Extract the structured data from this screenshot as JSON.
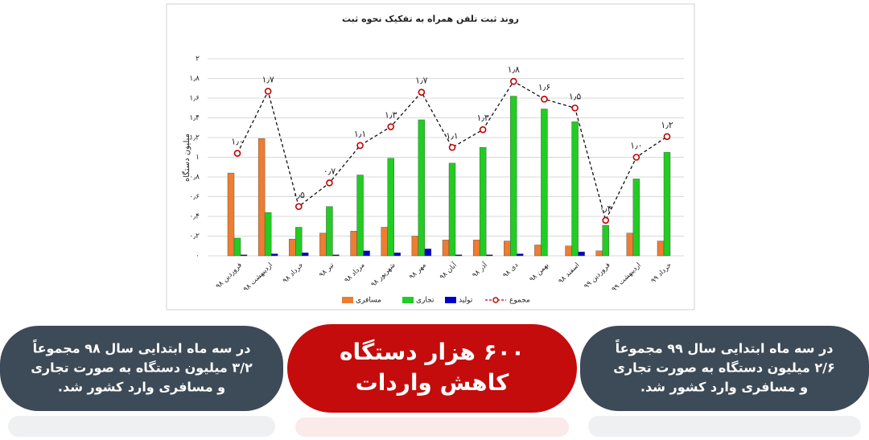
{
  "chart_data": {
    "type": "bar",
    "title": "روند ثبت تلفن همراه به تفکیک نحوه ثبت",
    "y_label": "میلیون دستگاه",
    "categories": [
      "فروردین ۹۸",
      "اردیبهشت ۹۸",
      "خرداد ۹۸",
      "تیر ۹۸",
      "مرداد ۹۸",
      "شهریور ۹۸",
      "مهر ۹۸",
      "آبان ۹۸",
      "آذر ۹۸",
      "دی ۹۸",
      "بهمن ۹۸",
      "اسفند ۹۸",
      "فروردین ۹۹",
      "اردیبهشت ۹۹",
      "خرداد ۹۹"
    ],
    "series": [
      {
        "name": "مسافری",
        "color": "#ed7d31",
        "values": [
          0.84,
          1.19,
          0.17,
          0.23,
          0.25,
          0.29,
          0.2,
          0.16,
          0.16,
          0.15,
          0.11,
          0.1,
          0.05,
          0.23,
          0.15
        ]
      },
      {
        "name": "تجاری",
        "color": "#22cc22",
        "values": [
          0.18,
          0.44,
          0.29,
          0.5,
          0.82,
          0.99,
          1.38,
          0.94,
          1.1,
          1.62,
          1.49,
          1.36,
          0.31,
          0.78,
          1.05
        ]
      },
      {
        "name": "تولید",
        "color": "#0000cc",
        "values": [
          0.01,
          0.02,
          0.03,
          0.01,
          0.05,
          0.03,
          0.07,
          0.01,
          0.01,
          0.02,
          0,
          0.04,
          0,
          0,
          0
        ]
      },
      {
        "name": "مجموع",
        "type": "line",
        "color": "#c00000",
        "values": [
          1.04,
          1.67,
          0.5,
          0.74,
          1.12,
          1.31,
          1.66,
          1.1,
          1.28,
          1.77,
          1.59,
          1.5,
          0.36,
          1.0,
          1.21
        ],
        "value_labels": [
          "۱٫۰",
          "۱٫۷",
          "۰٫۵",
          "۰٫۷",
          "۱٫۱",
          "۱٫۳",
          "۱٫۷",
          "۱٫۱",
          "۱٫۳",
          "۱٫۸",
          "۱٫۶",
          "۱٫۵",
          "۰٫۴",
          "۱٫۰",
          "۱٫۲"
        ]
      }
    ],
    "ylim": [
      0,
      2
    ],
    "yticks": [
      {
        "value": 0,
        "label": "۰"
      },
      {
        "value": 0.2,
        "label": "۰٫۲"
      },
      {
        "value": 0.4,
        "label": "۰٫۴"
      },
      {
        "value": 0.6,
        "label": "۰٫۶"
      },
      {
        "value": 0.8,
        "label": "۰٫۸"
      },
      {
        "value": 1,
        "label": "۱"
      },
      {
        "value": 1.2,
        "label": "۱٫۲"
      },
      {
        "value": 1.4,
        "label": "۱٫۴"
      },
      {
        "value": 1.6,
        "label": "۱٫۶"
      },
      {
        "value": 1.8,
        "label": "۱٫۸"
      },
      {
        "value": 2,
        "label": "۲"
      }
    ],
    "grid": true
  },
  "panels": [
    {
      "lines": [
        "در سه ماه ابتدایی سال ۹۸ مجموعاً",
        "۳/۲ میلیون دستگاه به صورت تجاری",
        "و مسافری وارد کشور شد."
      ]
    },
    {
      "lines": [
        "۶۰۰ هزار دستگاه",
        "کاهش واردات"
      ]
    },
    {
      "lines": [
        "در سه ماه ابتدایی سال ۹۹ مجموعاً",
        "۲/۶ میلیون دستگاه به صورت تجاری",
        "و مسافری وارد کشور شد."
      ]
    }
  ]
}
